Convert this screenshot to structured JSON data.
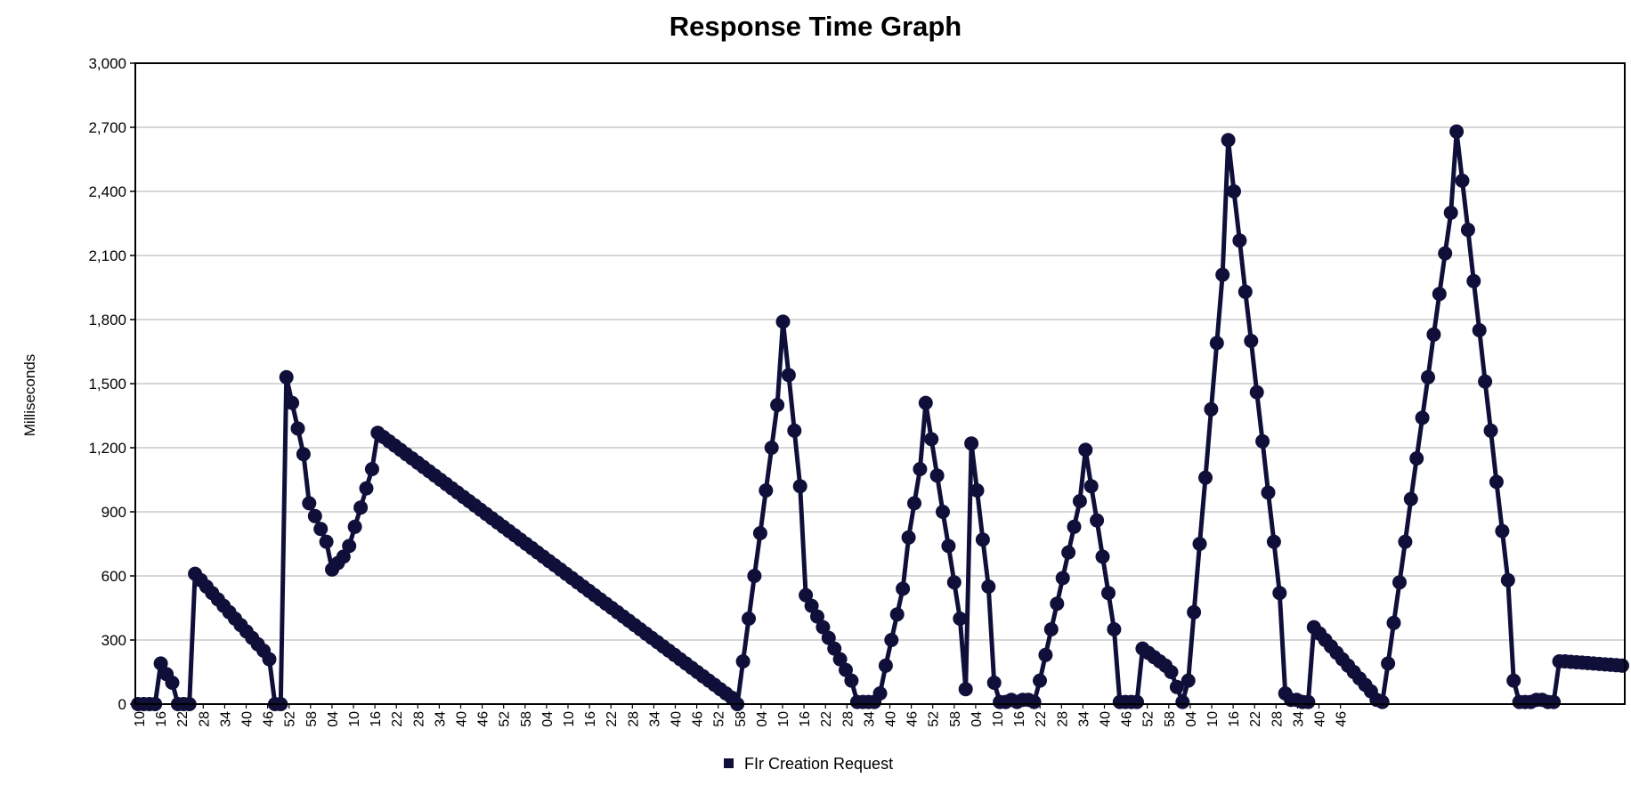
{
  "chart_data": {
    "type": "line",
    "title": "Response Time Graph",
    "xlabel": "",
    "ylabel": "Milliseconds",
    "ylim": [
      0,
      3000
    ],
    "yticks": [
      "0",
      "300",
      "600",
      "900",
      "1,200",
      "1,500",
      "1,800",
      "2,100",
      "2,400",
      "2,700",
      "3,000"
    ],
    "grid": true,
    "legend_position": "bottom",
    "x_tick_labels": [
      "10",
      "16",
      "22",
      "28",
      "34",
      "40",
      "46",
      "52",
      "58",
      "04",
      "10",
      "16",
      "22",
      "28",
      "34",
      "40",
      "46",
      "52",
      "58",
      "04",
      "10",
      "16",
      "22",
      "28",
      "34",
      "40",
      "46",
      "52",
      "58",
      "04",
      "10",
      "16",
      "22",
      "28",
      "34",
      "40",
      "46",
      "52",
      "58",
      "04",
      "10",
      "16",
      "22",
      "28",
      "34",
      "40",
      "46",
      "52",
      "58",
      "04",
      "10",
      "16",
      "22",
      "28",
      "34",
      "40",
      "46"
    ],
    "colors": {
      "series": "#0f0f3a",
      "frame": "#000000",
      "grid": "#c8c8c8"
    },
    "series": [
      {
        "name": "FIr Creation Request",
        "values": [
          0,
          0,
          0,
          0,
          190,
          140,
          100,
          0,
          0,
          0,
          610,
          580,
          550,
          520,
          490,
          460,
          430,
          400,
          370,
          340,
          310,
          280,
          250,
          210,
          0,
          0,
          1530,
          1410,
          1290,
          1170,
          940,
          880,
          820,
          760,
          630,
          660,
          690,
          740,
          830,
          920,
          1010,
          1100,
          1270,
          1250,
          1230,
          1210,
          1190,
          1170,
          1150,
          1130,
          1110,
          1090,
          1070,
          1050,
          1030,
          1010,
          990,
          970,
          950,
          930,
          910,
          890,
          870,
          850,
          830,
          810,
          790,
          770,
          750,
          730,
          710,
          690,
          670,
          650,
          630,
          610,
          590,
          570,
          550,
          530,
          510,
          490,
          470,
          450,
          430,
          410,
          390,
          370,
          350,
          330,
          310,
          290,
          270,
          250,
          230,
          210,
          190,
          170,
          150,
          130,
          110,
          90,
          70,
          50,
          30,
          0,
          200,
          400,
          600,
          800,
          1000,
          1200,
          1400,
          1790,
          1540,
          1280,
          1020,
          510,
          460,
          410,
          360,
          310,
          260,
          210,
          160,
          110,
          10,
          10,
          10,
          10,
          50,
          180,
          300,
          420,
          540,
          780,
          940,
          1100,
          1410,
          1240,
          1070,
          900,
          740,
          570,
          400,
          70,
          1220,
          1000,
          770,
          550,
          100,
          10,
          10,
          20,
          10,
          20,
          20,
          10,
          110,
          230,
          350,
          470,
          590,
          710,
          830,
          950,
          1190,
          1020,
          860,
          690,
          520,
          350,
          10,
          10,
          10,
          10,
          260,
          240,
          220,
          200,
          180,
          150,
          80,
          10,
          110,
          430,
          750,
          1060,
          1380,
          1690,
          2010,
          2640,
          2400,
          2170,
          1930,
          1700,
          1460,
          1230,
          990,
          760,
          520,
          50,
          20,
          20,
          10,
          10,
          360,
          330,
          300,
          270,
          240,
          210,
          180,
          150,
          120,
          90,
          60,
          20,
          10,
          190,
          380,
          570,
          760,
          960,
          1150,
          1340,
          1530,
          1730,
          1920,
          2110,
          2300,
          2680,
          2450,
          2220,
          1980,
          1750,
          1510,
          1280,
          1040,
          810,
          580,
          110,
          10,
          10,
          10,
          20,
          20,
          10,
          10,
          200,
          200,
          198,
          196,
          194,
          192,
          190,
          188,
          186,
          184,
          182,
          180
        ]
      }
    ]
  }
}
